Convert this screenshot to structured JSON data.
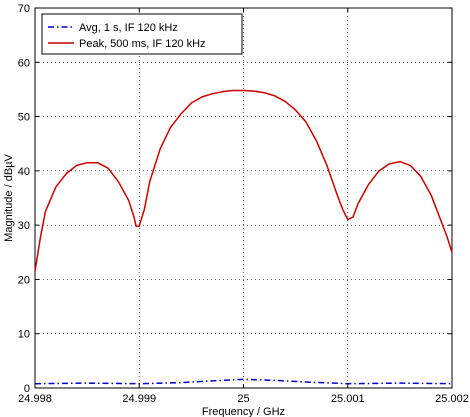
{
  "chart_data": {
    "type": "line",
    "title": "",
    "xlabel": "Frequency / GHz",
    "ylabel": "Magnitude / dBµV",
    "xlim": [
      24.998,
      25.002
    ],
    "ylim": [
      0,
      70
    ],
    "x_ticks": [
      24.998,
      24.999,
      25,
      25.001,
      25.002
    ],
    "x_tick_labels": [
      "24.998",
      "24.999",
      "25",
      "25.001",
      "25.002"
    ],
    "y_ticks": [
      0,
      10,
      20,
      30,
      40,
      50,
      60,
      70
    ],
    "y_tick_labels": [
      "0",
      "10",
      "20",
      "30",
      "40",
      "50",
      "60",
      "70"
    ],
    "grid": true,
    "legend_position": "top-left",
    "series": [
      {
        "name": "Avg, 1 s, IF 120 kHz",
        "color": "#0000cc",
        "line_style": "dash-dot",
        "x": [
          24.998,
          24.9985,
          24.999,
          24.9994,
          24.9997,
          25.0,
          25.0003,
          25.0006,
          25.001,
          25.0015,
          25.002
        ],
        "y": [
          0.8,
          0.9,
          0.8,
          1.0,
          1.3,
          1.6,
          1.4,
          1.1,
          0.8,
          0.9,
          0.8
        ]
      },
      {
        "name": "Peak, 500 ms, IF 120 kHz",
        "color": "#cc0000",
        "line_style": "solid",
        "x": [
          24.998,
          24.99805,
          24.9981,
          24.9982,
          24.9983,
          24.9984,
          24.9985,
          24.9986,
          24.9987,
          24.9988,
          24.9989,
          24.99895,
          24.99897,
          24.999,
          24.99905,
          24.9991,
          24.9992,
          24.9993,
          24.9994,
          24.9995,
          24.9996,
          24.9997,
          24.9998,
          24.9999,
          25.0,
          25.0001,
          25.0002,
          25.0003,
          25.0004,
          25.0005,
          25.0006,
          25.0007,
          25.0008,
          25.0009,
          25.00095,
          25.001,
          25.00105,
          25.0011,
          25.0012,
          25.0013,
          25.0014,
          25.0015,
          25.0016,
          25.0017,
          25.0018,
          25.0019,
          25.00195,
          25.002
        ],
        "y": [
          21.5,
          27.5,
          32.5,
          37.0,
          39.5,
          41.0,
          41.5,
          41.5,
          40.5,
          38.0,
          34.5,
          31.5,
          29.8,
          29.8,
          33.0,
          38.0,
          44.0,
          48.0,
          50.5,
          52.5,
          53.6,
          54.2,
          54.6,
          54.8,
          54.8,
          54.7,
          54.4,
          53.8,
          52.8,
          51.2,
          49.0,
          45.5,
          41.0,
          35.5,
          33.0,
          31.0,
          31.5,
          34.0,
          37.5,
          40.0,
          41.3,
          41.7,
          41.0,
          39.0,
          35.5,
          30.5,
          28.0,
          25.0
        ]
      }
    ]
  }
}
